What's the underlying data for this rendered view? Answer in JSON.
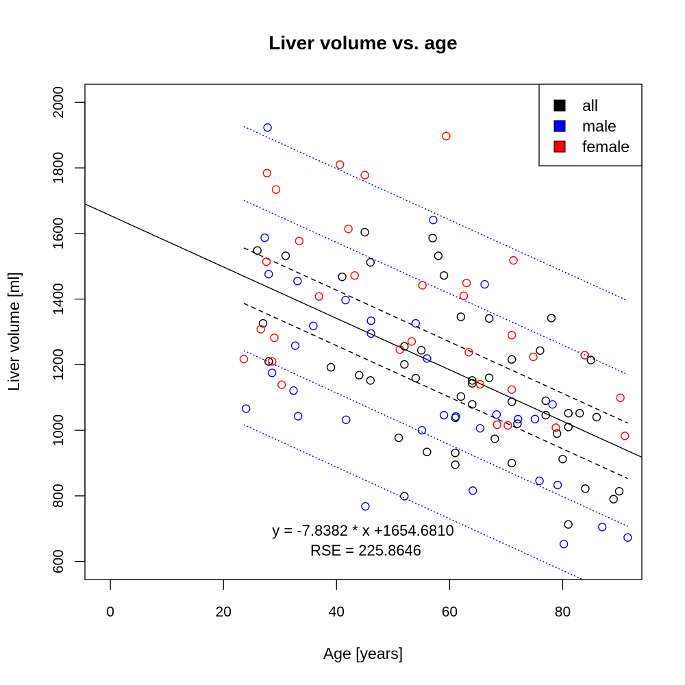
{
  "chart_data": {
    "type": "scatter",
    "title": "Liver volume vs. age",
    "xlabel": "Age [years]",
    "ylabel": "Liver volume [ml]",
    "xlim": [
      -4.5,
      94
    ],
    "ylim": [
      545,
      2055
    ],
    "xticks": [
      0,
      20,
      40,
      60,
      80
    ],
    "yticks": [
      600,
      800,
      1000,
      1200,
      1400,
      1600,
      1800,
      2000
    ],
    "legend": {
      "position": "top-right",
      "entries": [
        {
          "label": "all",
          "color": "#000000"
        },
        {
          "label": "male",
          "color": "#0000ff"
        },
        {
          "label": "female",
          "color": "#ff0000"
        }
      ]
    },
    "series": [
      {
        "name": "all",
        "color": "#000000",
        "points": [
          [
            26,
            1548
          ],
          [
            27,
            1326
          ],
          [
            28,
            1210
          ],
          [
            31,
            1532
          ],
          [
            39,
            1192
          ],
          [
            41,
            1468
          ],
          [
            44,
            1168
          ],
          [
            45,
            1604
          ],
          [
            46,
            1512
          ],
          [
            46,
            1152
          ],
          [
            51,
            977
          ],
          [
            52,
            1256
          ],
          [
            52,
            1201
          ],
          [
            52,
            799
          ],
          [
            54,
            1159
          ],
          [
            55,
            1244
          ],
          [
            56,
            934
          ],
          [
            57,
            1586
          ],
          [
            58,
            1532
          ],
          [
            59,
            1472
          ],
          [
            61,
            1038
          ],
          [
            61,
            931
          ],
          [
            61,
            895
          ],
          [
            62,
            1346
          ],
          [
            62,
            1103
          ],
          [
            64,
            1152
          ],
          [
            64,
            1143
          ],
          [
            64,
            1079
          ],
          [
            67,
            1341
          ],
          [
            67,
            1160
          ],
          [
            68,
            974
          ],
          [
            71,
            1216
          ],
          [
            71,
            1087
          ],
          [
            71,
            900
          ],
          [
            72,
            1020
          ],
          [
            76,
            1243
          ],
          [
            77,
            1090
          ],
          [
            77,
            1046
          ],
          [
            78,
            1342
          ],
          [
            79,
            990
          ],
          [
            80,
            912
          ],
          [
            81,
            1052
          ],
          [
            81,
            1010
          ],
          [
            81,
            713
          ],
          [
            83,
            1052
          ],
          [
            84,
            822
          ],
          [
            85,
            1214
          ],
          [
            86,
            1040
          ],
          [
            89,
            790
          ],
          [
            90,
            814
          ]
        ]
      },
      {
        "name": "male",
        "color": "#0000ff",
        "points": [
          [
            24,
            1066
          ],
          [
            27.3,
            1587
          ],
          [
            27.8,
            1923
          ],
          [
            28,
            1476
          ],
          [
            28.6,
            1175
          ],
          [
            32.4,
            1121
          ],
          [
            32.7,
            1258
          ],
          [
            33.1,
            1455
          ],
          [
            33.2,
            1043
          ],
          [
            35.9,
            1318
          ],
          [
            41.6,
            1397
          ],
          [
            41.7,
            1032
          ],
          [
            45.1,
            768
          ],
          [
            46.1,
            1334
          ],
          [
            46.1,
            1295
          ],
          [
            54,
            1326
          ],
          [
            55.1,
            1000
          ],
          [
            56,
            1219
          ],
          [
            57.1,
            1641
          ],
          [
            59,
            1046
          ],
          [
            61.1,
            1042
          ],
          [
            64.1,
            816
          ],
          [
            65.4,
            1006
          ],
          [
            66.2,
            1445
          ],
          [
            68.3,
            1048
          ],
          [
            72.1,
            1034
          ],
          [
            75.1,
            1034
          ],
          [
            75.9,
            846
          ],
          [
            78.2,
            1079
          ],
          [
            79.1,
            833
          ],
          [
            80.2,
            653
          ],
          [
            87,
            705
          ],
          [
            91.5,
            673
          ]
        ]
      },
      {
        "name": "female",
        "color": "#ff0000",
        "points": [
          [
            23.6,
            1217
          ],
          [
            26.6,
            1308
          ],
          [
            27.6,
            1514
          ],
          [
            27.7,
            1784
          ],
          [
            28.6,
            1210
          ],
          [
            29,
            1282
          ],
          [
            29.3,
            1734
          ],
          [
            30.3,
            1139
          ],
          [
            33.4,
            1577
          ],
          [
            36.9,
            1408
          ],
          [
            40.6,
            1810
          ],
          [
            42.1,
            1614
          ],
          [
            43.2,
            1472
          ],
          [
            45,
            1778
          ],
          [
            51.2,
            1246
          ],
          [
            53.3,
            1271
          ],
          [
            55.2,
            1442
          ],
          [
            59.4,
            1897
          ],
          [
            62.5,
            1410
          ],
          [
            63,
            1449
          ],
          [
            63.4,
            1238
          ],
          [
            65.4,
            1140
          ],
          [
            68.4,
            1017
          ],
          [
            70.3,
            1015
          ],
          [
            71,
            1290
          ],
          [
            71,
            1124
          ],
          [
            71.3,
            1518
          ],
          [
            74.8,
            1224
          ],
          [
            78.8,
            1008
          ],
          [
            83.9,
            1229
          ],
          [
            90.2,
            1099
          ],
          [
            91,
            983
          ]
        ]
      }
    ],
    "regression": {
      "slope": -7.8382,
      "intercept": 1654.681,
      "rse": 225.8646
    },
    "annotations": [
      "y = -7.8382 * x +1654.6810",
      "RSE = 225.8646"
    ],
    "bands": [
      {
        "kind": "confidence",
        "style": "dashed",
        "color": "#000000",
        "x": [
          23.6,
          91.5
        ],
        "upper": [
          1556,
          1022
        ],
        "lower": [
          1387,
          853
        ]
      },
      {
        "kind": "prediction-1SE",
        "style": "dotted",
        "color": "#0000ff",
        "x": [
          23.6,
          91.5
        ],
        "upper": [
          1701,
          1170
        ],
        "lower": [
          1243,
          707
        ]
      },
      {
        "kind": "prediction-2SE",
        "style": "dotted",
        "color": "#0000ff",
        "x": [
          23.6,
          91.5
        ],
        "upper": [
          1926,
          1395
        ],
        "lower": [
          1017,
          482
        ]
      }
    ]
  }
}
